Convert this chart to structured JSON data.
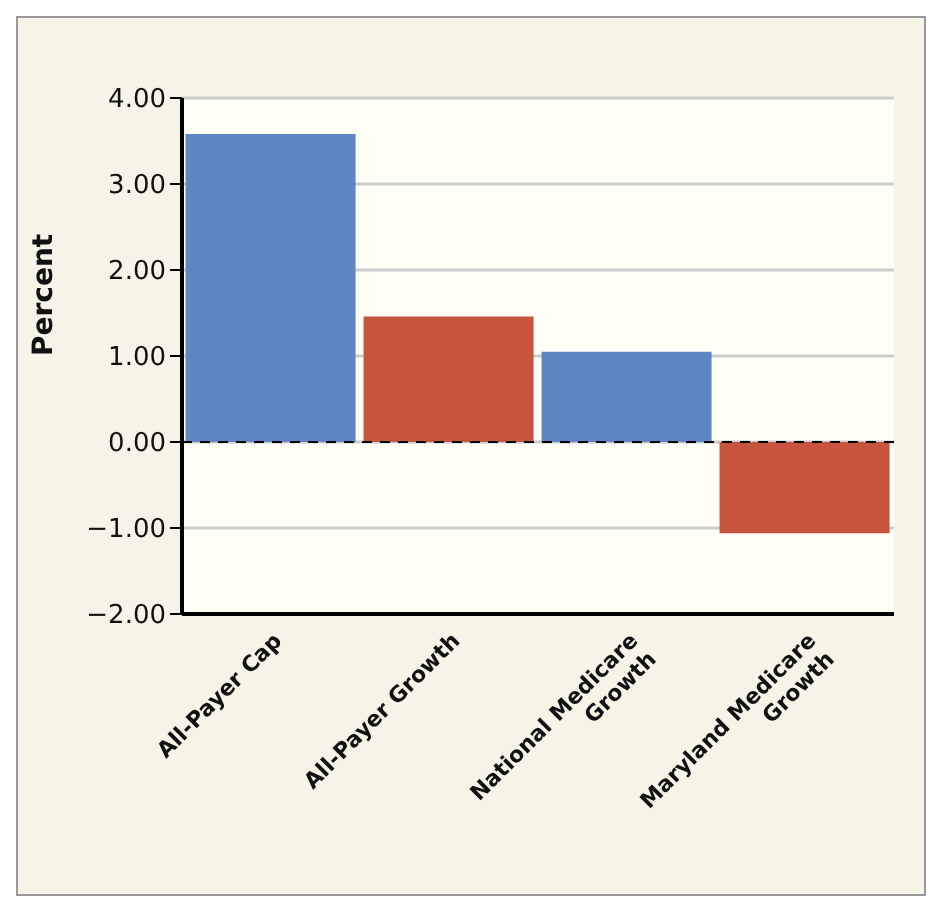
{
  "chart_data": {
    "type": "bar",
    "ylabel": "Percent",
    "categories": [
      "All-Payer Cap",
      "All-Payer Growth",
      "National Medicare Growth",
      "Maryland Medicare Growth"
    ],
    "values": [
      3.58,
      1.46,
      1.05,
      -1.06
    ],
    "colors": [
      "#5e86c2",
      "#c8543e",
      "#5e86c2",
      "#c8543e"
    ],
    "ylim": [
      -2,
      4
    ],
    "yticks": [
      {
        "value": -2,
        "label": "−2.00"
      },
      {
        "value": -1,
        "label": "−1.00"
      },
      {
        "value": 0,
        "label": "0.00"
      },
      {
        "value": 1,
        "label": "1.00"
      },
      {
        "value": 2,
        "label": "2.00"
      },
      {
        "value": 3,
        "label": "3.00"
      },
      {
        "value": 4,
        "label": "4.00"
      }
    ],
    "grid": "y",
    "ref_lines": [
      {
        "axis": "y",
        "value": 0,
        "label": null,
        "color": "#000000",
        "line_style": "dashed"
      }
    ]
  }
}
